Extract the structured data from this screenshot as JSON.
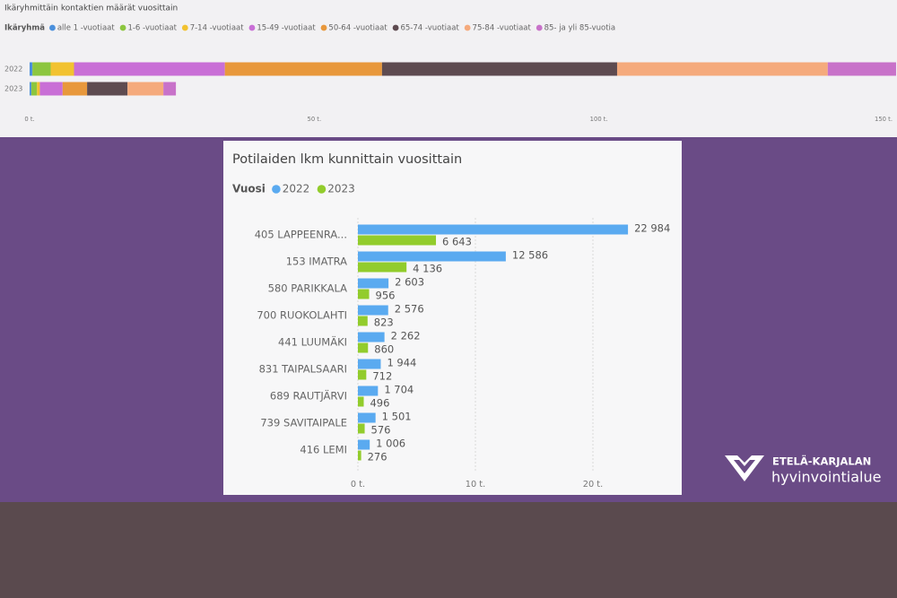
{
  "chart_data": [
    {
      "type": "hbar-stacked",
      "title": "Ikäryhmittäin kontaktien määrät vuosittain",
      "legend_title": "Ikäryhmä",
      "categories": [
        "2022",
        "2023"
      ],
      "series": [
        {
          "name": "alle 1 -vuotiaat",
          "color": "#4a8fdc",
          "values": [
            500,
            300
          ]
        },
        {
          "name": "1-6 -vuotiaat",
          "color": "#8cc63f",
          "values": [
            3200,
            1000
          ]
        },
        {
          "name": "7-14 -vuotiaat",
          "color": "#f2c230",
          "values": [
            4100,
            500
          ]
        },
        {
          "name": "15-49 -vuotiaat",
          "color": "#c96fd6",
          "values": [
            26500,
            4000
          ]
        },
        {
          "name": "50-64 -vuotiaat",
          "color": "#e8983c",
          "values": [
            27600,
            4300
          ]
        },
        {
          "name": "65-74 -vuotiaat",
          "color": "#5e4b50",
          "values": [
            41300,
            7100
          ]
        },
        {
          "name": "75-84 -vuotiaat",
          "color": "#f5aa7c",
          "values": [
            37000,
            6300
          ]
        },
        {
          "name": "85- ja yli 85-vuotia",
          "color": "#c872c9",
          "values": [
            12000,
            2200
          ]
        }
      ],
      "xlim": [
        0,
        150000
      ],
      "xticks": [
        {
          "value": 0,
          "label": "0 t."
        },
        {
          "value": 50000,
          "label": "50 t."
        },
        {
          "value": 100000,
          "label": "100 t."
        },
        {
          "value": 150000,
          "label": "150 t."
        }
      ]
    },
    {
      "type": "hbar-grouped",
      "title": "Potilaiden lkm kunnittain vuosittain",
      "legend_title": "Vuosi",
      "categories": [
        "405 LAPPEENRA...",
        "153 IMATRA",
        "580 PARIKKALA",
        "700 RUOKOLAHTI",
        "441 LUUMÄKI",
        "831 TAIPALSAARI",
        "689 RAUTJÄRVI",
        "739 SAVITAIPALE",
        "416 LEMI"
      ],
      "series": [
        {
          "name": "2022",
          "color": "#5aaaf0",
          "values": [
            22984,
            12586,
            2603,
            2576,
            2262,
            1944,
            1704,
            1501,
            1006
          ],
          "value_labels": [
            "22 984",
            "12 586",
            "2 603",
            "2 576",
            "2 262",
            "1 944",
            "1 704",
            "1 501",
            "1 006"
          ]
        },
        {
          "name": "2023",
          "color": "#92cc2c",
          "values": [
            6643,
            4136,
            956,
            823,
            860,
            712,
            496,
            576,
            276
          ],
          "value_labels": [
            "6 643",
            "4 136",
            "956",
            "823",
            "860",
            "712",
            "496",
            "576",
            "276"
          ]
        }
      ],
      "xlim": [
        0,
        25000
      ],
      "xticks": [
        {
          "value": 0,
          "label": "0 t."
        },
        {
          "value": 10000,
          "label": "10 t."
        },
        {
          "value": 20000,
          "label": "20 t."
        }
      ],
      "grid": true
    }
  ],
  "logo": {
    "line1": "ETELÄ-KARJALAN",
    "line2": "hyvinvointialue"
  }
}
